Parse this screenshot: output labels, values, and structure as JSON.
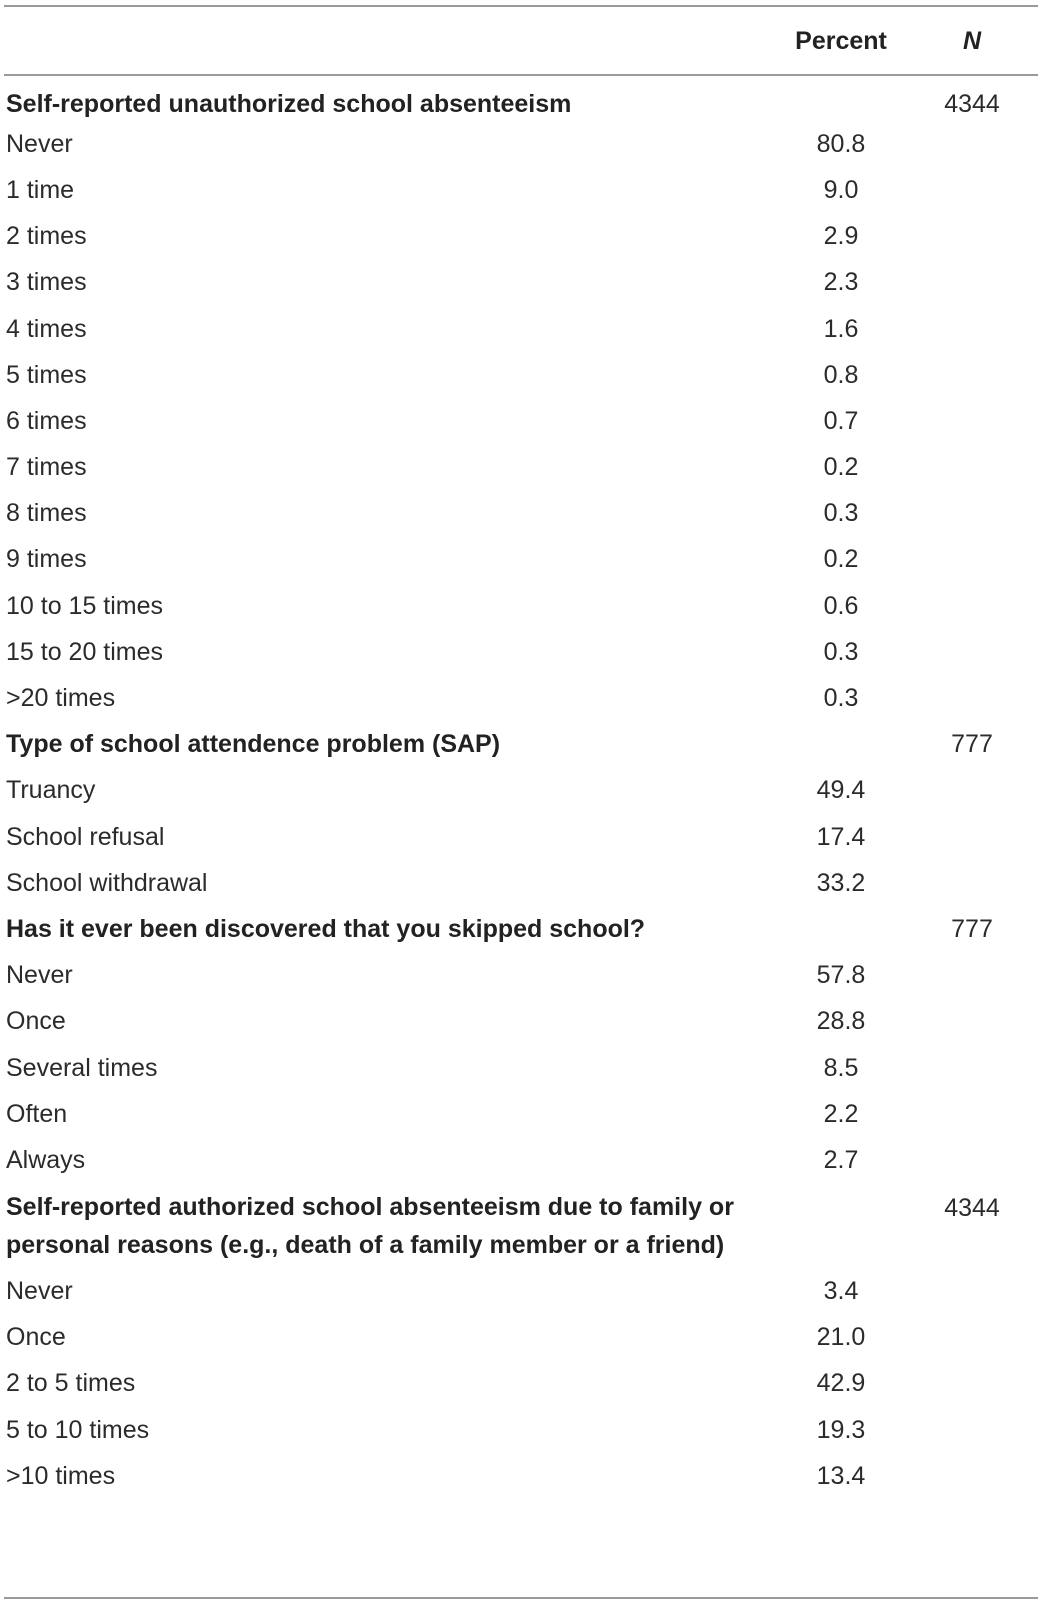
{
  "columns": {
    "label": "",
    "percent": "Percent",
    "n": "N"
  },
  "sections": [
    {
      "heading": "Self-reported unauthorized school absenteeism",
      "n": "4344",
      "rows": [
        {
          "label": "Never",
          "percent": "80.8"
        },
        {
          "label": "1 time",
          "percent": "9.0"
        },
        {
          "label": "2 times",
          "percent": "2.9"
        },
        {
          "label": "3 times",
          "percent": "2.3"
        },
        {
          "label": "4 times",
          "percent": "1.6"
        },
        {
          "label": "5 times",
          "percent": "0.8"
        },
        {
          "label": "6 times",
          "percent": "0.7"
        },
        {
          "label": "7 times",
          "percent": "0.2"
        },
        {
          "label": "8 times",
          "percent": "0.3"
        },
        {
          "label": "9 times",
          "percent": "0.2"
        },
        {
          "label": "10 to 15 times",
          "percent": "0.6"
        },
        {
          "label": "15 to 20 times",
          "percent": "0.3"
        },
        {
          "label": ">20 times",
          "percent": "0.3"
        }
      ]
    },
    {
      "heading": "Type of school attendence problem (SAP)",
      "n": "777",
      "rows": [
        {
          "label": "Truancy",
          "percent": "49.4"
        },
        {
          "label": "School refusal",
          "percent": "17.4"
        },
        {
          "label": "School withdrawal",
          "percent": "33.2"
        }
      ]
    },
    {
      "heading": "Has it ever been discovered that you skipped school?",
      "n": "777",
      "rows": [
        {
          "label": "Never",
          "percent": "57.8"
        },
        {
          "label": "Once",
          "percent": "28.8"
        },
        {
          "label": "Several times",
          "percent": "8.5"
        },
        {
          "label": "Often",
          "percent": "2.2"
        },
        {
          "label": "Always",
          "percent": "2.7"
        }
      ]
    },
    {
      "heading": "Self-reported authorized school absenteeism due to family or personal reasons (e.g., death of a family member or a friend)",
      "n": "4344",
      "rows": [
        {
          "label": "Never",
          "percent": "3.4"
        },
        {
          "label": "Once",
          "percent": "21.0"
        },
        {
          "label": "2 to 5 times",
          "percent": "42.9"
        },
        {
          "label": "5 to 10 times",
          "percent": "19.3"
        },
        {
          "label": ">10 times",
          "percent": "13.4"
        }
      ]
    }
  ]
}
